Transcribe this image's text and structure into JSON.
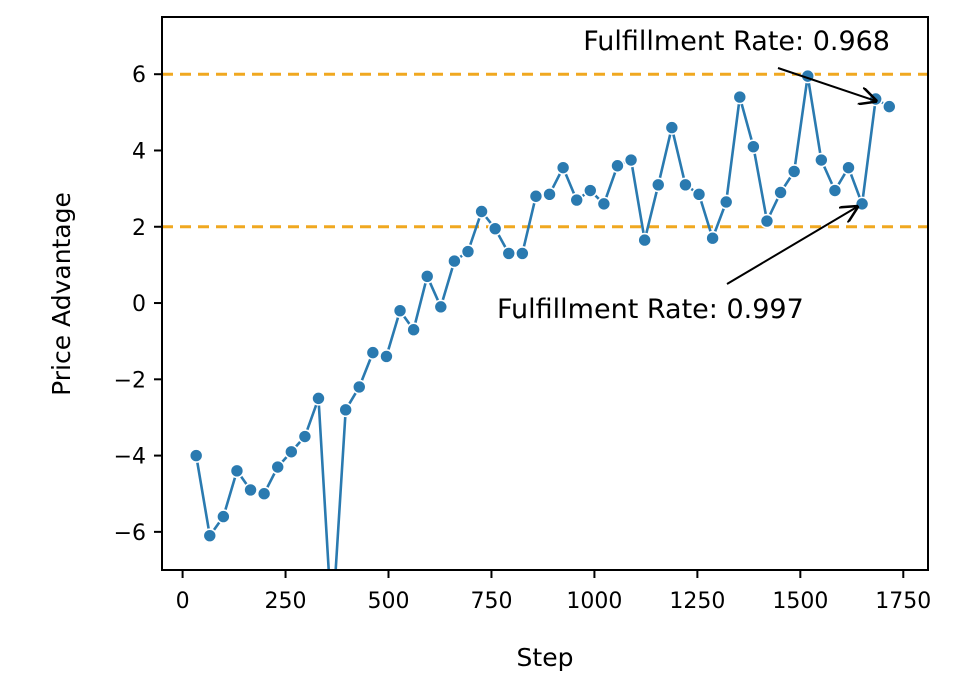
{
  "chart_data": {
    "type": "line",
    "xlabel": "Step",
    "ylabel": "Price Advantage",
    "xlim": [
      -50,
      1810
    ],
    "ylim": [
      -7.0,
      7.5
    ],
    "xticks": [
      0,
      250,
      500,
      750,
      1000,
      1250,
      1500,
      1750
    ],
    "yticks": [
      -6,
      -4,
      -2,
      0,
      2,
      4,
      6
    ],
    "xtick_labels": [
      "0",
      "250",
      "500",
      "750",
      "1000",
      "1250",
      "1500",
      "1750"
    ],
    "ytick_labels": [
      "−6",
      "−4",
      "−2",
      "0",
      "2",
      "4",
      "6"
    ],
    "grid": false,
    "series": [
      {
        "color": "#2a7ab0",
        "x": [
          33,
          66,
          99,
          132,
          165,
          198,
          231,
          264,
          297,
          330,
          363,
          396,
          429,
          462,
          495,
          528,
          561,
          594,
          627,
          660,
          693,
          726,
          759,
          792,
          825,
          858,
          891,
          924,
          957,
          990,
          1023,
          1056,
          1089,
          1122,
          1155,
          1188,
          1221,
          1254,
          1287,
          1320,
          1353,
          1386,
          1419,
          1452,
          1485,
          1518,
          1551,
          1584,
          1617,
          1650,
          1683,
          1716
        ],
        "y": [
          -4.0,
          -6.1,
          -5.6,
          -4.4,
          -4.9,
          -5.0,
          -4.3,
          -3.9,
          -3.5,
          -2.5,
          -8.5,
          -2.8,
          -2.2,
          -1.3,
          -1.4,
          -0.2,
          -0.7,
          0.7,
          -0.1,
          1.1,
          1.35,
          2.4,
          1.95,
          1.3,
          1.3,
          2.8,
          2.85,
          3.55,
          2.7,
          2.95,
          2.6,
          3.6,
          3.75,
          1.65,
          3.1,
          4.6,
          3.1,
          2.85,
          1.7,
          2.65,
          5.4,
          4.1,
          2.15,
          2.9,
          3.45,
          5.95,
          3.75,
          2.95,
          3.55,
          2.6,
          5.35,
          5.15
        ]
      }
    ],
    "hlines": [
      {
        "y": 6,
        "color": "#f0a820",
        "style": "dashed"
      },
      {
        "y": 2,
        "color": "#f0a820",
        "style": "dashed"
      }
    ],
    "annotations": [
      {
        "text": "Fulfillment Rate: 0.968",
        "target_x": 1683,
        "target_y": 5.3
      },
      {
        "text": "Fulfillment Rate: 0.997",
        "target_x": 1650,
        "target_y": 2.6
      }
    ]
  }
}
